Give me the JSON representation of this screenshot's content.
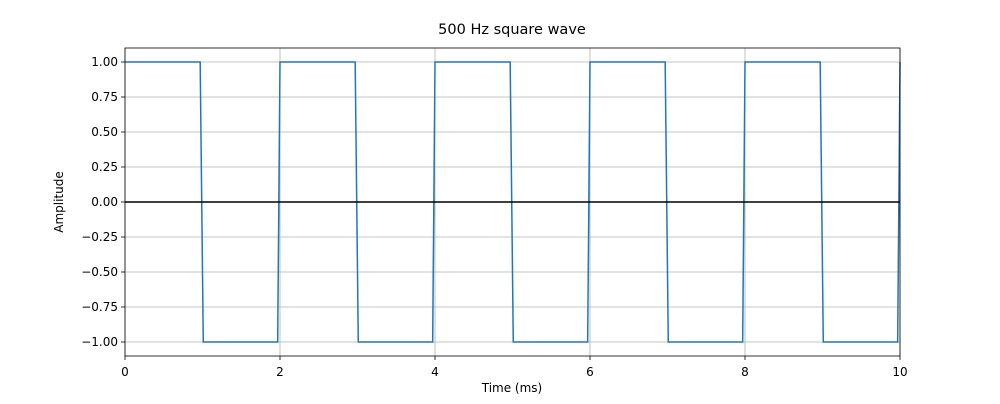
{
  "chart_data": {
    "type": "line",
    "title": "500 Hz square wave",
    "x_label": "Time (ms)",
    "y_label": "Amplitude",
    "x": [
      0,
      0.97,
      1.01,
      1.97,
      2,
      2.97,
      3.01,
      3.97,
      4,
      4.97,
      5.01,
      5.97,
      6,
      6.97,
      7.01,
      7.97,
      8,
      8.97,
      9.01,
      9.97,
      10
    ],
    "series": [
      {
        "color": "#1f77b4",
        "values": [
          1,
          1,
          -1,
          -1,
          1,
          1,
          -1,
          -1,
          1,
          1,
          -1,
          -1,
          1,
          1,
          -1,
          -1,
          1,
          1,
          -1,
          -1,
          1
        ]
      }
    ],
    "xlim": [
      0,
      10
    ],
    "xticks": [
      0,
      2,
      4,
      6,
      8,
      10
    ],
    "ylim": [
      -1.1,
      1.1
    ],
    "yticks": [
      {
        "value": -1,
        "label": "−1.00"
      },
      {
        "value": -0.75,
        "label": "−0.75"
      },
      {
        "value": -0.5,
        "label": "−0.50"
      },
      {
        "value": -0.25,
        "label": "−0.25"
      },
      {
        "value": 0,
        "label": "0.00"
      },
      {
        "value": 0.25,
        "label": "0.25"
      },
      {
        "value": 0.5,
        "label": "0.50"
      },
      {
        "value": 0.75,
        "label": "0.75"
      },
      {
        "value": 1,
        "label": "1.00"
      }
    ],
    "grid": true,
    "hlines": [
      {
        "value": 0,
        "color": "#000000"
      }
    ]
  }
}
